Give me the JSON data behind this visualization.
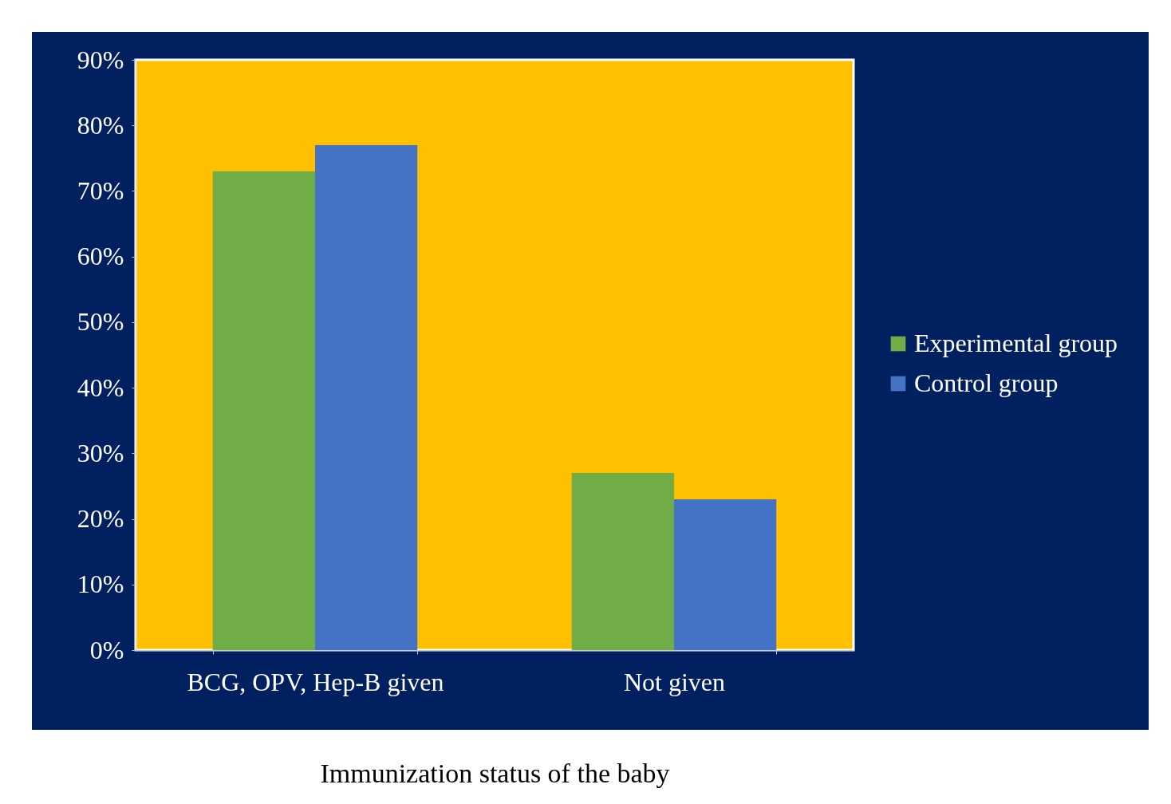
{
  "chart_data": {
    "type": "bar",
    "xlabel": "Immunization status of the baby",
    "categories": [
      "BCG, OPV, Hep-B given",
      "Not given"
    ],
    "series": [
      {
        "name": "Experimental group",
        "color": "#70ad47",
        "values": [
          73,
          27
        ]
      },
      {
        "name": "Control group",
        "color": "#4472c4",
        "values": [
          77,
          23
        ]
      }
    ],
    "ylim": [
      0,
      90
    ],
    "yticks": [
      {
        "value": 0,
        "label": "0%"
      },
      {
        "value": 10,
        "label": "10%"
      },
      {
        "value": 20,
        "label": "20%"
      },
      {
        "value": 30,
        "label": "30%"
      },
      {
        "value": 40,
        "label": "40%"
      },
      {
        "value": 50,
        "label": "50%"
      },
      {
        "value": 60,
        "label": "60%"
      },
      {
        "value": 70,
        "label": "70%"
      },
      {
        "value": 80,
        "label": "80%"
      },
      {
        "value": 90,
        "label": "90%"
      }
    ],
    "legend": "right"
  }
}
